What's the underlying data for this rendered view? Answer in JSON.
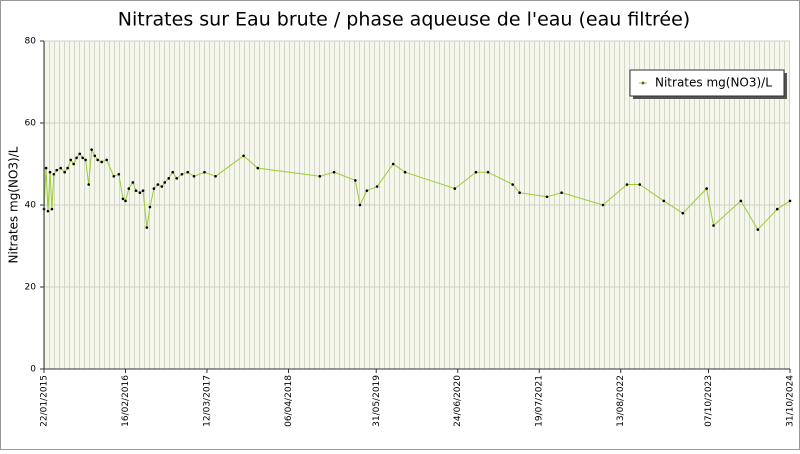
{
  "chart_data": {
    "type": "line",
    "title": "Nitrates sur Eau brute / phase aqueuse de l'eau (eau filtrée)",
    "y_label": "Nitrates mg(NO3)/L",
    "xlim": [
      "2015-01-22",
      "2024-10-31"
    ],
    "xticks": [
      {
        "value": "2015-01-22",
        "label": "22/01/2015"
      },
      {
        "value": "2016-02-16",
        "label": "16/02/2016"
      },
      {
        "value": "2017-03-12",
        "label": "12/03/2017"
      },
      {
        "value": "2018-04-06",
        "label": "06/04/2018"
      },
      {
        "value": "2019-05-31",
        "label": "31/05/2019"
      },
      {
        "value": "2020-06-24",
        "label": "24/06/2020"
      },
      {
        "value": "2021-07-19",
        "label": "19/07/2021"
      },
      {
        "value": "2022-08-13",
        "label": "13/08/2022"
      },
      {
        "value": "2023-10-07",
        "label": "07/10/2023"
      },
      {
        "value": "2024-10-31",
        "label": "31/10/2024"
      }
    ],
    "ylim": [
      0,
      80
    ],
    "yticks": [
      0,
      20,
      40,
      60,
      80
    ],
    "grid": true,
    "legend": "top-right",
    "x": [
      "2015-01-22",
      "2015-02-01",
      "2015-02-10",
      "2015-02-20",
      "2015-03-01",
      "2015-03-10",
      "2015-03-24",
      "2015-04-12",
      "2015-05-01",
      "2015-05-15",
      "2015-05-30",
      "2015-06-13",
      "2015-06-27",
      "2015-07-12",
      "2015-07-26",
      "2015-08-09",
      "2015-08-24",
      "2015-09-07",
      "2015-09-22",
      "2015-10-06",
      "2015-10-25",
      "2015-11-18",
      "2015-12-22",
      "2016-01-15",
      "2016-02-04",
      "2016-02-16",
      "2016-03-03",
      "2016-03-22",
      "2016-04-06",
      "2016-04-25",
      "2016-05-10",
      "2016-05-28",
      "2016-06-12",
      "2016-07-01",
      "2016-07-20",
      "2016-08-08",
      "2016-08-22",
      "2016-09-10",
      "2016-09-29",
      "2016-10-18",
      "2016-11-12",
      "2016-12-10",
      "2017-01-09",
      "2017-02-28",
      "2017-04-22",
      "2017-09-03",
      "2017-11-10",
      "2018-09-03",
      "2018-11-10",
      "2019-02-20",
      "2019-03-14",
      "2019-04-16",
      "2019-06-04",
      "2019-08-20",
      "2019-10-16",
      "2020-06-10",
      "2020-09-19",
      "2020-11-16",
      "2021-03-14",
      "2021-04-16",
      "2021-08-25",
      "2021-11-03",
      "2022-05-20",
      "2022-09-12",
      "2022-11-12",
      "2023-03-07",
      "2023-06-06",
      "2023-09-28",
      "2023-10-31",
      "2024-03-10",
      "2024-05-30",
      "2024-08-31",
      "2024-10-31"
    ],
    "series": [
      {
        "name": "Nitrates mg(NO3)/L",
        "color": "#9acd32",
        "marker_color": "#000000",
        "values": [
          39,
          49,
          38.5,
          48,
          39,
          47.5,
          48.5,
          49,
          48,
          49,
          51,
          50,
          51.5,
          52.5,
          51.5,
          51,
          45,
          53.5,
          52,
          51,
          50.5,
          51,
          47,
          47.5,
          41.5,
          41,
          44,
          45.5,
          43.5,
          43,
          43.5,
          34.5,
          39.5,
          44,
          45,
          44.5,
          45.5,
          46.5,
          48,
          46.5,
          47.5,
          48,
          47,
          48,
          47,
          52,
          49,
          47,
          48,
          46,
          40,
          43.5,
          44.5,
          50,
          48,
          44,
          48,
          48,
          45,
          43,
          42,
          43,
          40,
          45,
          45,
          41,
          38,
          44,
          35,
          41,
          34,
          39,
          41
        ]
      }
    ]
  }
}
